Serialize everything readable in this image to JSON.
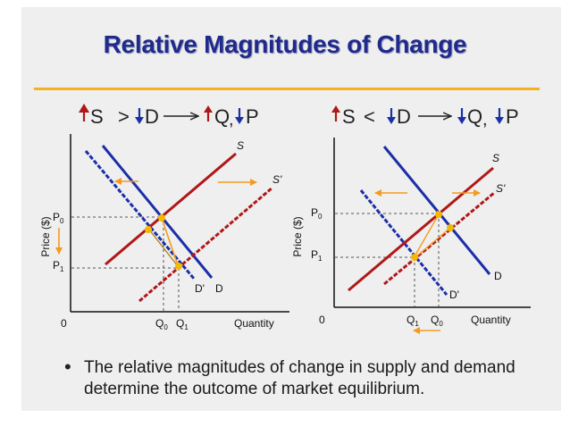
{
  "slide": {
    "title": "Relative Magnitudes of Change",
    "bullet": "The relative magnitudes of change in supply and demand determine the outcome of market equilibrium."
  },
  "colors": {
    "title": "#1f2a8c",
    "rule": "#f5b120",
    "supply": "#b01818",
    "demand": "#1a2fa8",
    "arrow": "#f59a1e",
    "eqpoint": "#f5b800"
  },
  "left_panel": {
    "formula": {
      "s_arrow": "↑",
      "s": "S",
      "op": ">",
      "d_arrow": "↓",
      "d": "D",
      "q_arrow": "↑",
      "q": "Q",
      "comma": ",",
      "p_arrow": "↓",
      "p": "P"
    },
    "y_axis_label": "Price ($)",
    "origin": "0",
    "x_axis_label": "Quantity",
    "p0": "P",
    "p0_sub": "0",
    "p1": "P",
    "p1_sub": "1",
    "q0": "Q",
    "q0_sub": "0",
    "q1": "Q",
    "q1_sub": "1",
    "s_label": "S",
    "s2_label": "S'",
    "d_label": "D",
    "d2_label": "D'"
  },
  "right_panel": {
    "formula": {
      "s_arrow": "↑",
      "s": "S",
      "op": "<",
      "d_arrow": "↓",
      "d": "D",
      "q_arrow": "↓",
      "q": "Q",
      "comma": ",",
      "p_arrow": "↓",
      "p": "P"
    },
    "y_axis_label": "Price ($)",
    "origin": "0",
    "x_axis_label": "Quantity",
    "p0": "P",
    "p0_sub": "0",
    "p1": "P",
    "p1_sub": "1",
    "q1": "Q",
    "q1_sub": "1",
    "q0": "Q",
    "q0_sub": "0",
    "s_label": "S",
    "s2_label": "S'",
    "d_label": "D",
    "d2_label": "D'"
  }
}
